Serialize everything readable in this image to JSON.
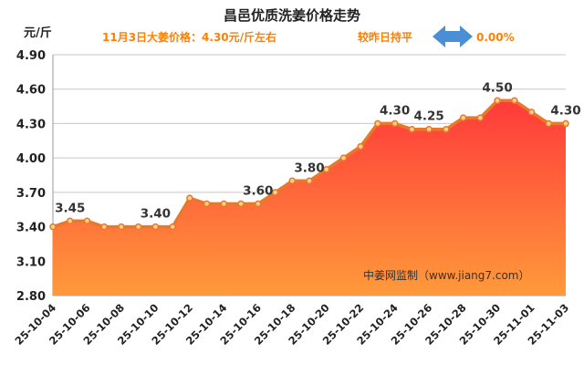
{
  "chart_data": {
    "type": "area",
    "title": "昌邑优质洗姜价格走势",
    "subtitle": "11月3日大姜价格：4.30元/斤左右",
    "trend_text": "较昨日持平",
    "change_pct": "0.00%",
    "unit_label": "元/斤",
    "source": "中姜网监制（www.jiang7.com）",
    "yticks": [
      "4.90",
      "4.60",
      "4.30",
      "4.00",
      "3.70",
      "3.40",
      "3.10",
      "2.80"
    ],
    "ylim": [
      2.8,
      4.9
    ],
    "x": [
      "25-10-04",
      "25-10-05",
      "25-10-06",
      "25-10-07",
      "25-10-08",
      "25-10-09",
      "25-10-10",
      "25-10-11",
      "25-10-12",
      "25-10-13",
      "25-10-14",
      "25-10-15",
      "25-10-16",
      "25-10-17",
      "25-10-18",
      "25-10-19",
      "25-10-20",
      "25-10-21",
      "25-10-22",
      "25-10-23",
      "25-10-24",
      "25-10-25",
      "25-10-26",
      "25-10-27",
      "25-10-28",
      "25-10-29",
      "25-10-30",
      "25-10-31",
      "25-11-01",
      "25-11-02",
      "25-11-03"
    ],
    "values": [
      3.4,
      3.45,
      3.45,
      3.4,
      3.4,
      3.4,
      3.4,
      3.4,
      3.65,
      3.6,
      3.6,
      3.6,
      3.6,
      3.7,
      3.8,
      3.8,
      3.9,
      4.0,
      4.1,
      4.3,
      4.3,
      4.25,
      4.25,
      4.25,
      4.35,
      4.35,
      4.5,
      4.5,
      4.4,
      4.3,
      4.3
    ],
    "xtick_labels": [
      "25-10-04",
      "25-10-06",
      "25-10-08",
      "25-10-10",
      "25-10-12",
      "25-10-14",
      "25-10-16",
      "25-10-18",
      "25-10-20",
      "25-10-22",
      "25-10-24",
      "25-10-26",
      "25-10-28",
      "25-10-30",
      "25-11-01",
      "25-11-03"
    ],
    "data_labels": [
      {
        "index": 1,
        "text": "3.45"
      },
      {
        "index": 6,
        "text": "3.40"
      },
      {
        "index": 12,
        "text": "3.60"
      },
      {
        "index": 15,
        "text": "3.80"
      },
      {
        "index": 20,
        "text": "4.30"
      },
      {
        "index": 22,
        "text": "4.25"
      },
      {
        "index": 26,
        "text": "4.50"
      },
      {
        "index": 30,
        "text": "4.30"
      }
    ],
    "grid": true,
    "colors": {
      "fill_top": "#ff3a3a",
      "fill_bottom": "#ff9a3a",
      "line": "#e8782a",
      "marker": "#ffd08a",
      "accent": "#ff7f00",
      "arrow": "#4a8fd6"
    }
  }
}
